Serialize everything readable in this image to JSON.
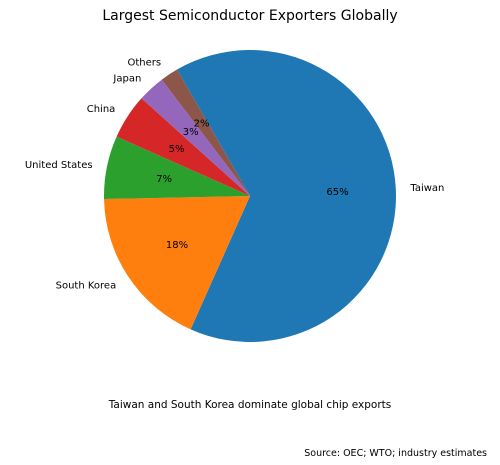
{
  "chart_data": {
    "type": "pie",
    "title": "Largest Semiconductor Exporters Globally",
    "start_angle_deg": 120,
    "direction": "clockwise",
    "slices": [
      {
        "label": "Taiwan",
        "value": 65,
        "pct_label": "65%",
        "color": "#1f77b4"
      },
      {
        "label": "South Korea",
        "value": 18,
        "pct_label": "18%",
        "color": "#ff7f0e"
      },
      {
        "label": "United States",
        "value": 7,
        "pct_label": "7%",
        "color": "#2ca02c"
      },
      {
        "label": "China",
        "value": 5,
        "pct_label": "5%",
        "color": "#d62728"
      },
      {
        "label": "Japan",
        "value": 3,
        "pct_label": "3%",
        "color": "#9467bd"
      },
      {
        "label": "Others",
        "value": 2,
        "pct_label": "2%",
        "color": "#8c564b"
      }
    ],
    "caption": "Taiwan and South Korea dominate global chip exports",
    "source": "Source: OEC; WTO; industry estimates"
  }
}
